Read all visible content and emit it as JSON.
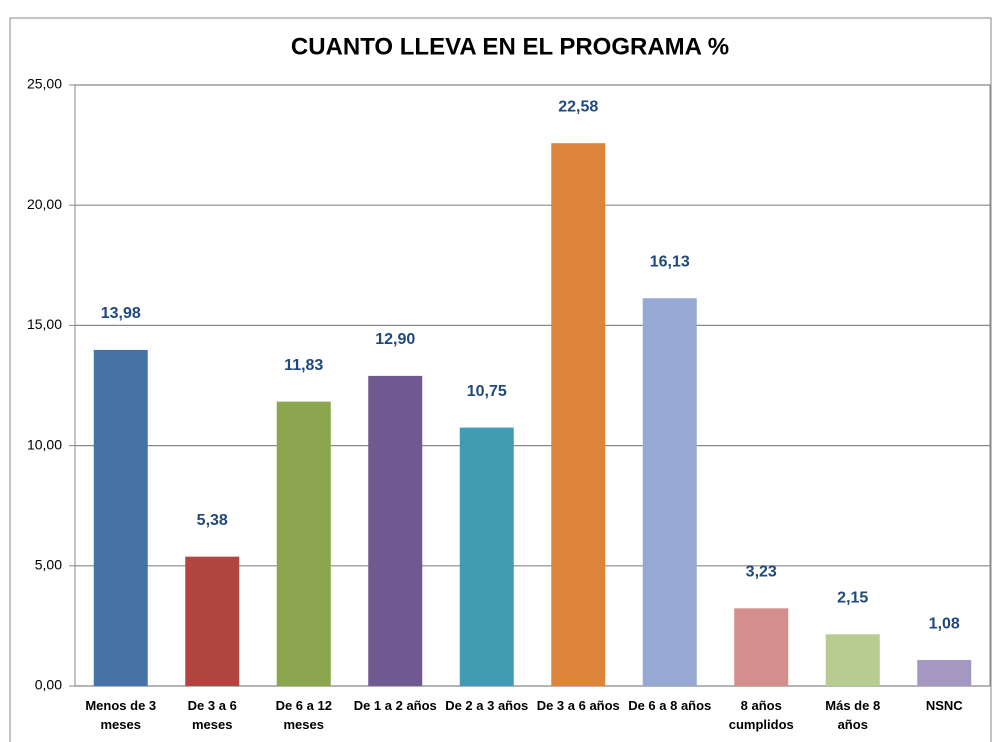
{
  "chart_data": {
    "type": "bar",
    "title": "CUANTO LLEVA EN EL PROGRAMA %",
    "categories": [
      "Menos de 3 meses",
      "De 3 a 6 meses",
      "De 6 a 12 meses",
      "De 1 a 2 años",
      "De 2 a 3 años",
      "De 3 a 6 años",
      "De 6 a 8 años",
      "8 años cumplidos",
      "Más de 8 años",
      "NSNC"
    ],
    "values": [
      13.98,
      5.38,
      11.83,
      12.9,
      10.75,
      22.58,
      16.13,
      3.23,
      2.15,
      1.08
    ],
    "value_labels": [
      "13,98",
      "5,38",
      "11,83",
      "12,90",
      "10,75",
      "22,58",
      "16,13",
      "3,23",
      "2,15",
      "1,08"
    ],
    "colors": [
      "#4672a8",
      "#b0463f",
      "#8ba64e",
      "#705891",
      "#409bb3",
      "#dd843b",
      "#95a9d3",
      "#d48f8d",
      "#b7cc91",
      "#a498c3"
    ],
    "ylim": [
      0,
      25
    ],
    "yticks": [
      {
        "value": 0,
        "label": "0,00"
      },
      {
        "value": 5,
        "label": "5,00"
      },
      {
        "value": 10,
        "label": "10,00"
      },
      {
        "value": 15,
        "label": "15,00"
      },
      {
        "value": 20,
        "label": "20,00"
      },
      {
        "value": 25,
        "label": "25,00"
      }
    ],
    "grid": true
  }
}
